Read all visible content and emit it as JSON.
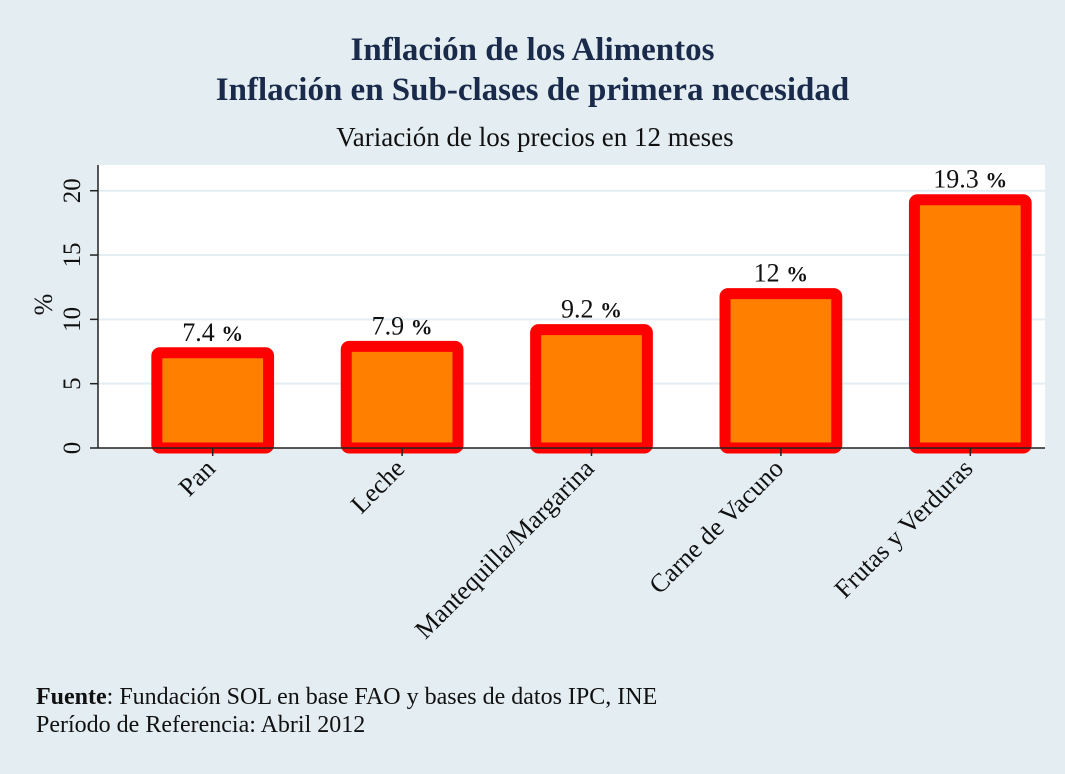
{
  "title_line1": "Inflación de los Alimentos",
  "title_line2": "Inflación en Sub-clases de primera necesidad",
  "subtitle": "Variación de los precios en 12 meses",
  "footer": {
    "source_label": "Fuente",
    "source_text": ": Fundación SOL en base FAO y bases de datos IPC, INE",
    "period": "Período de Referencia: Abril 2012"
  },
  "colors": {
    "background": "#e4eef2",
    "plot_area": "#ffffff",
    "bar_fill": "#ff7f00",
    "bar_border": "#ff0000",
    "title": "#1a2a4a"
  },
  "chart_data": {
    "type": "bar",
    "ylabel": "%",
    "ylim": [
      0,
      22
    ],
    "yticks": [
      0,
      5,
      10,
      15,
      20
    ],
    "grid": true,
    "categories": [
      "Pan",
      "Leche",
      "Mantequilla/Margarina",
      "Carne de Vacuno",
      "Frutas y Verduras"
    ],
    "values": [
      7.4,
      7.9,
      9.2,
      12,
      19.3
    ],
    "labels": [
      "7.4",
      "7.9",
      "9.2",
      "12",
      "19.3"
    ],
    "label_suffix": "%"
  }
}
